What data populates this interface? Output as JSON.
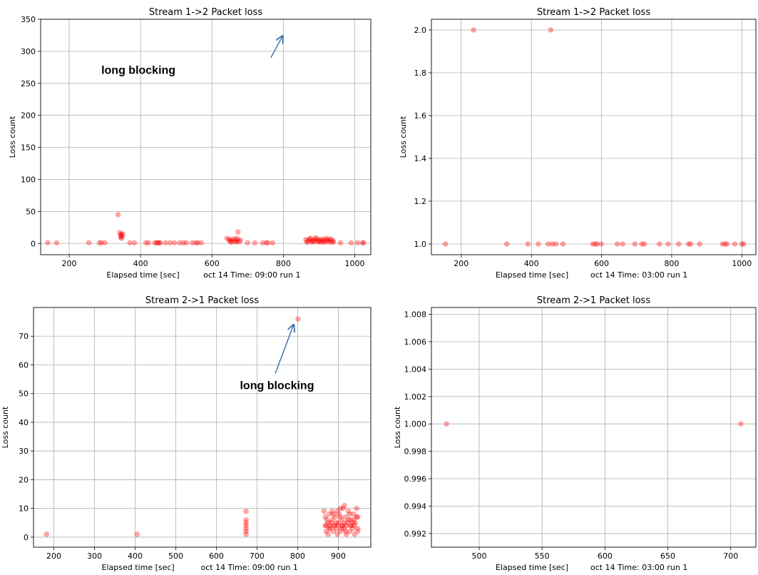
{
  "chart_data": [
    {
      "type": "scatter",
      "title": "Stream 1->2 Packet loss",
      "xlabel": "Elapsed time [sec]",
      "ylabel": "Loss count",
      "caption": "oct 14 Time: 09:00 run 1",
      "xlim": [
        120,
        1045
      ],
      "ylim": [
        -17.5,
        350
      ],
      "xticks": [
        200,
        400,
        600,
        800,
        1000
      ],
      "xtick_labels": [
        "200",
        "400",
        "600",
        "800",
        "1000"
      ],
      "yticks": [
        0,
        50,
        100,
        150,
        200,
        250,
        300,
        350
      ],
      "ytick_labels": [
        "0",
        "50",
        "100",
        "150",
        "200",
        "250",
        "300",
        "350"
      ],
      "grid": true,
      "marker_color": "#ff0000",
      "annotation": {
        "text": "long blocking",
        "text_at": [
          290,
          265
        ],
        "arrow_from": [
          765,
          290
        ],
        "arrow_to": [
          798,
          324
        ]
      },
      "points": [
        [
          140,
          1
        ],
        [
          165,
          1
        ],
        [
          255,
          1
        ],
        [
          285,
          1
        ],
        [
          290,
          1
        ],
        [
          300,
          1
        ],
        [
          337,
          45
        ],
        [
          342,
          17
        ],
        [
          345,
          13
        ],
        [
          345,
          10
        ],
        [
          346,
          8
        ],
        [
          348,
          11
        ],
        [
          350,
          15
        ],
        [
          345,
          14
        ],
        [
          370,
          1
        ],
        [
          383,
          1
        ],
        [
          415,
          1
        ],
        [
          422,
          1
        ],
        [
          440,
          1
        ],
        [
          445,
          1
        ],
        [
          448,
          1
        ],
        [
          452,
          1
        ],
        [
          455,
          1
        ],
        [
          470,
          1
        ],
        [
          483,
          1
        ],
        [
          495,
          1
        ],
        [
          510,
          1
        ],
        [
          520,
          1
        ],
        [
          528,
          1
        ],
        [
          545,
          1
        ],
        [
          555,
          1
        ],
        [
          560,
          1
        ],
        [
          570,
          1
        ],
        [
          642,
          8
        ],
        [
          648,
          5
        ],
        [
          652,
          3
        ],
        [
          658,
          6
        ],
        [
          662,
          4
        ],
        [
          668,
          2
        ],
        [
          672,
          7
        ],
        [
          676,
          3
        ],
        [
          680,
          5
        ],
        [
          655,
          2
        ],
        [
          665,
          8
        ],
        [
          670,
          4
        ],
        [
          650,
          6
        ],
        [
          673,
          18
        ],
        [
          700,
          1
        ],
        [
          720,
          1
        ],
        [
          742,
          1
        ],
        [
          752,
          1
        ],
        [
          757,
          1
        ],
        [
          770,
          1
        ],
        [
          863,
          6
        ],
        [
          868,
          3
        ],
        [
          872,
          5
        ],
        [
          876,
          8
        ],
        [
          880,
          2
        ],
        [
          884,
          4
        ],
        [
          888,
          6
        ],
        [
          892,
          3
        ],
        [
          896,
          7
        ],
        [
          900,
          5
        ],
        [
          904,
          2
        ],
        [
          908,
          4
        ],
        [
          912,
          6
        ],
        [
          916,
          3
        ],
        [
          920,
          8
        ],
        [
          924,
          5
        ],
        [
          928,
          2
        ],
        [
          932,
          4
        ],
        [
          936,
          6
        ],
        [
          940,
          3
        ],
        [
          866,
          2
        ],
        [
          874,
          7
        ],
        [
          882,
          4
        ],
        [
          890,
          9
        ],
        [
          898,
          3
        ],
        [
          906,
          6
        ],
        [
          914,
          2
        ],
        [
          922,
          5
        ],
        [
          930,
          7
        ],
        [
          938,
          2
        ],
        [
          960,
          1
        ],
        [
          990,
          1
        ],
        [
          1008,
          1
        ],
        [
          1022,
          1
        ],
        [
          1025,
          1
        ]
      ]
    },
    {
      "type": "scatter",
      "title": "Stream 1->2 Packet loss",
      "xlabel": "Elapsed time [sec]",
      "ylabel": "Loss count",
      "caption": "oct 14 Time: 03:00 run 1",
      "xlim": [
        115,
        1040
      ],
      "ylim": [
        0.95,
        2.05
      ],
      "xticks": [
        200,
        400,
        600,
        800,
        1000
      ],
      "xtick_labels": [
        "200",
        "400",
        "600",
        "800",
        "1000"
      ],
      "yticks": [
        1.0,
        1.2,
        1.4,
        1.6,
        1.8,
        2.0
      ],
      "ytick_labels": [
        "1.0",
        "1.2",
        "1.4",
        "1.6",
        "1.8",
        "2.0"
      ],
      "grid": true,
      "marker_color": "#ff0000",
      "points": [
        [
          155,
          1
        ],
        [
          235,
          2
        ],
        [
          330,
          1
        ],
        [
          390,
          1
        ],
        [
          420,
          1
        ],
        [
          448,
          1
        ],
        [
          460,
          1
        ],
        [
          470,
          1
        ],
        [
          490,
          1
        ],
        [
          575,
          1
        ],
        [
          582,
          1
        ],
        [
          588,
          1
        ],
        [
          600,
          1
        ],
        [
          645,
          1
        ],
        [
          660,
          1
        ],
        [
          695,
          1
        ],
        [
          715,
          1
        ],
        [
          722,
          1
        ],
        [
          765,
          1
        ],
        [
          790,
          1
        ],
        [
          820,
          1
        ],
        [
          848,
          1
        ],
        [
          854,
          1
        ],
        [
          880,
          1
        ],
        [
          945,
          1
        ],
        [
          952,
          1
        ],
        [
          958,
          1
        ],
        [
          980,
          1
        ],
        [
          1000,
          1
        ],
        [
          1005,
          1
        ],
        [
          455,
          2
        ]
      ]
    },
    {
      "type": "scatter",
      "title": "Stream 2->1 Packet loss",
      "xlabel": "Elapsed time [sec]",
      "ylabel": "Loss count",
      "caption": "oct 14 Time: 09:00 run 1",
      "xlim": [
        150,
        980
      ],
      "ylim": [
        -3.5,
        80
      ],
      "xticks": [
        200,
        300,
        400,
        500,
        600,
        700,
        800,
        900
      ],
      "xtick_labels": [
        "200",
        "300",
        "400",
        "500",
        "600",
        "700",
        "800",
        "900"
      ],
      "yticks": [
        0,
        10,
        20,
        30,
        40,
        50,
        60,
        70
      ],
      "ytick_labels": [
        "0",
        "10",
        "20",
        "30",
        "40",
        "50",
        "60",
        "70"
      ],
      "grid": true,
      "marker_color": "#ff0000",
      "annotation": {
        "text": "long blocking",
        "text_at": [
          658,
          51.5
        ],
        "arrow_from": [
          745,
          57
        ],
        "arrow_to": [
          790,
          74
        ]
      },
      "points": [
        [
          182,
          1
        ],
        [
          405,
          1
        ],
        [
          673,
          1
        ],
        [
          673,
          2
        ],
        [
          673,
          3
        ],
        [
          673,
          4
        ],
        [
          673,
          5
        ],
        [
          673,
          6
        ],
        [
          673,
          9
        ],
        [
          801,
          76
        ],
        [
          865,
          9
        ],
        [
          868,
          4
        ],
        [
          870,
          2
        ],
        [
          872,
          6
        ],
        [
          875,
          1
        ],
        [
          878,
          8
        ],
        [
          880,
          3
        ],
        [
          882,
          5
        ],
        [
          885,
          9
        ],
        [
          888,
          2
        ],
        [
          890,
          4
        ],
        [
          892,
          7
        ],
        [
          895,
          3
        ],
        [
          898,
          1
        ],
        [
          900,
          5
        ],
        [
          902,
          8
        ],
        [
          905,
          2
        ],
        [
          908,
          6
        ],
        [
          910,
          4
        ],
        [
          912,
          10
        ],
        [
          915,
          3
        ],
        [
          918,
          7
        ],
        [
          920,
          1
        ],
        [
          922,
          5
        ],
        [
          925,
          9
        ],
        [
          928,
          2
        ],
        [
          930,
          6
        ],
        [
          932,
          4
        ],
        [
          935,
          3
        ],
        [
          938,
          8
        ],
        [
          940,
          1
        ],
        [
          942,
          5
        ],
        [
          945,
          10
        ],
        [
          948,
          2
        ],
        [
          870,
          4
        ],
        [
          880,
          4
        ],
        [
          890,
          4
        ],
        [
          900,
          4
        ],
        [
          910,
          4
        ],
        [
          920,
          4
        ],
        [
          930,
          4
        ],
        [
          940,
          4
        ],
        [
          875,
          5
        ],
        [
          885,
          6
        ],
        [
          895,
          5
        ],
        [
          905,
          7
        ],
        [
          915,
          5
        ],
        [
          925,
          6
        ],
        [
          935,
          5
        ],
        [
          945,
          7
        ],
        [
          868,
          7
        ],
        [
          878,
          3
        ],
        [
          888,
          8
        ],
        [
          898,
          9
        ],
        [
          908,
          3
        ],
        [
          918,
          2
        ],
        [
          928,
          8
        ],
        [
          938,
          6
        ],
        [
          948,
          3
        ],
        [
          948,
          7
        ],
        [
          915,
          11
        ],
        [
          905,
          10
        ]
      ]
    },
    {
      "type": "scatter",
      "title": "Stream 2->1 Packet loss",
      "xlabel": "Elapsed time [sec]",
      "ylabel": "Loss count",
      "caption": "oct 14 Time: 03:00 run 1",
      "xlim": [
        462,
        720
      ],
      "ylim": [
        0.991,
        1.0085
      ],
      "xticks": [
        500,
        550,
        600,
        650,
        700
      ],
      "xtick_labels": [
        "500",
        "550",
        "600",
        "650",
        "700"
      ],
      "yticks": [
        0.992,
        0.994,
        0.996,
        0.998,
        1.0,
        1.002,
        1.004,
        1.006,
        1.008
      ],
      "ytick_labels": [
        "0.992",
        "0.994",
        "0.996",
        "0.998",
        "1.000",
        "1.002",
        "1.004",
        "1.006",
        "1.008"
      ],
      "grid": true,
      "marker_color": "#ff0000",
      "points": [
        [
          474,
          1.0
        ],
        [
          708,
          1.0
        ]
      ]
    }
  ]
}
